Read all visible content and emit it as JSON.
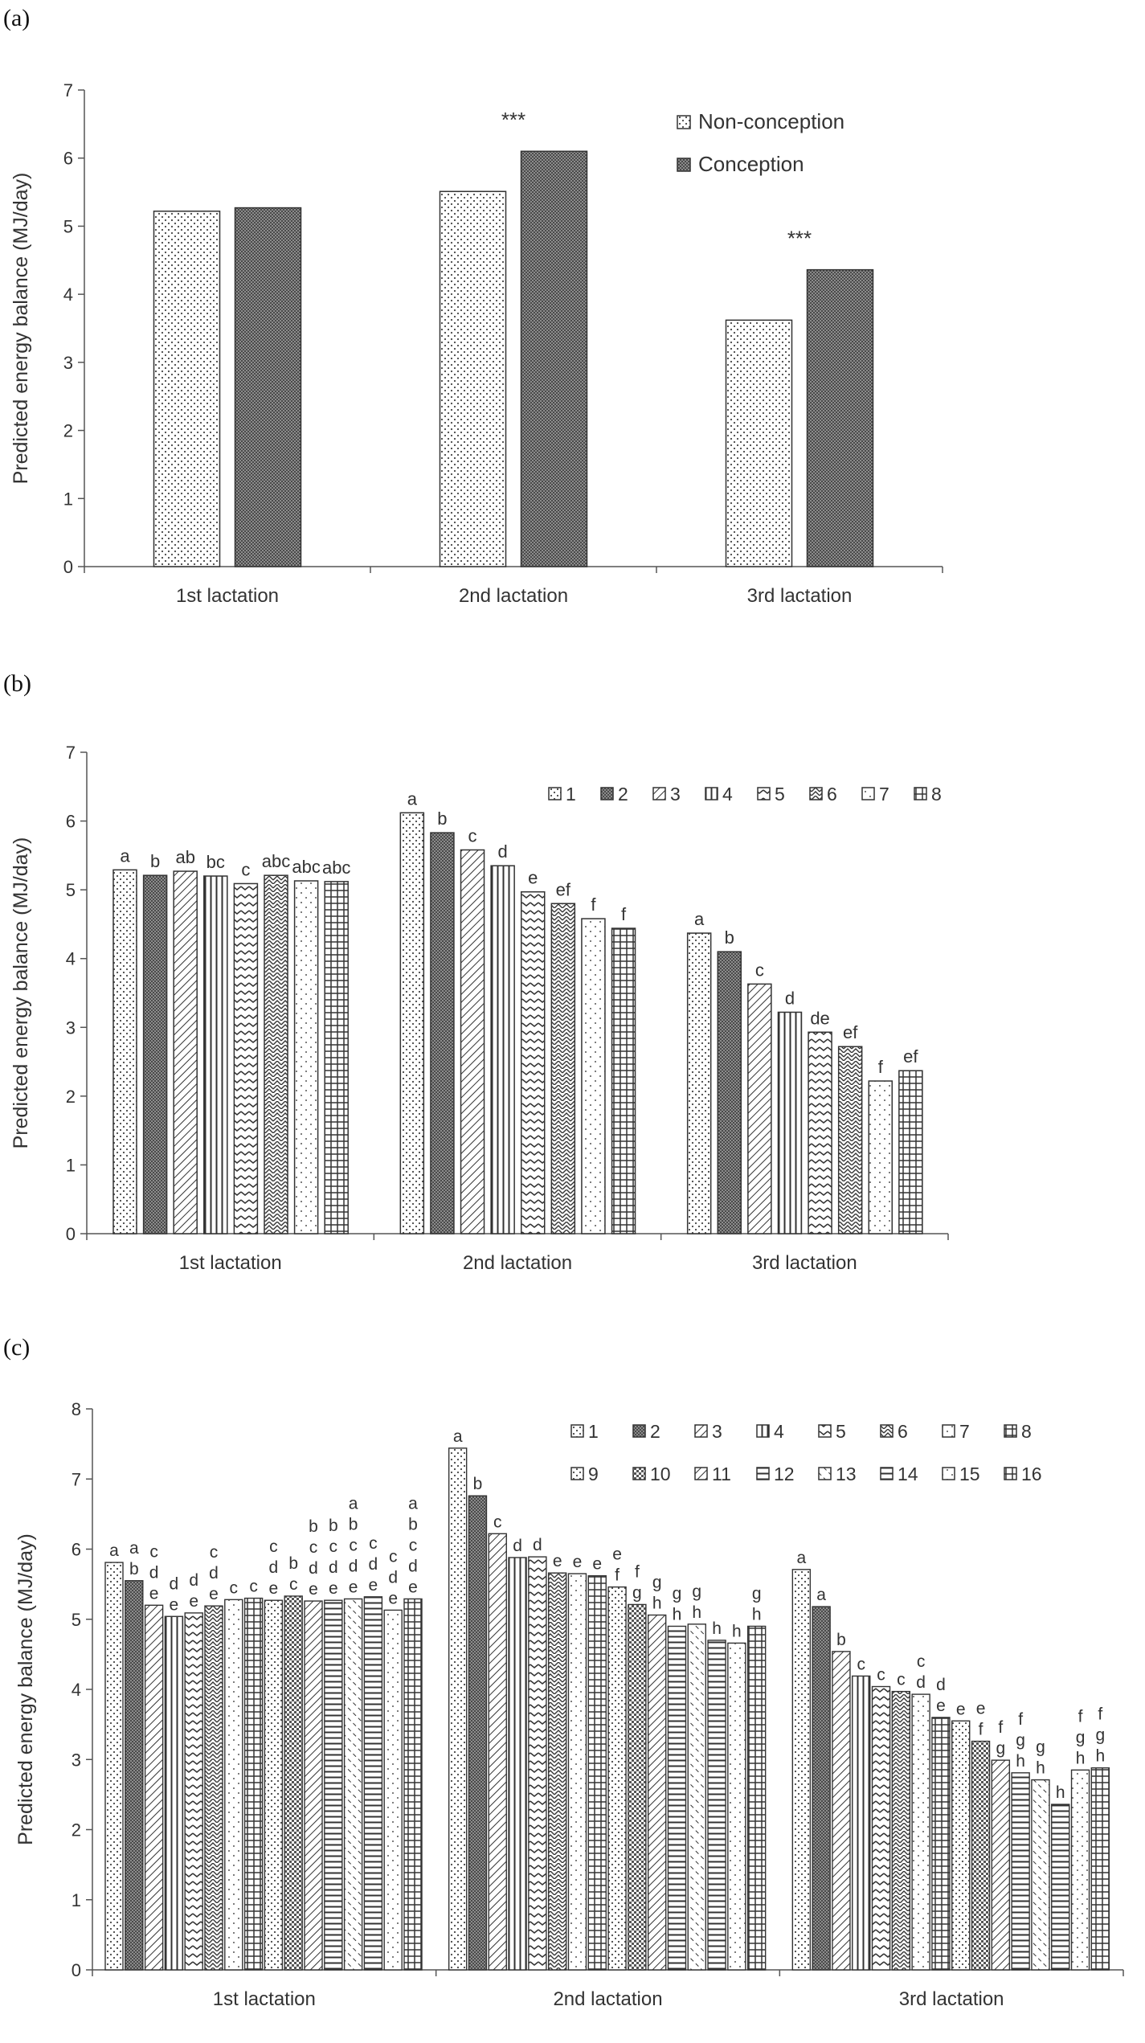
{
  "panels": [
    {
      "label": "(a)",
      "chart_data": {
        "type": "bar",
        "ylabel": "Predicted energy balance (MJ/day)",
        "ylim": [
          0,
          7
        ],
        "yticks": [
          0,
          1,
          2,
          3,
          4,
          5,
          6,
          7
        ],
        "categories": [
          "1st lactation",
          "2nd lactation",
          "3rd lactation"
        ],
        "legend_position": "top-right",
        "series": [
          {
            "name": "Non-conception",
            "pattern": "dots",
            "values": [
              5.22,
              5.51,
              3.62
            ]
          },
          {
            "name": "Conception",
            "pattern": "dense",
            "values": [
              5.27,
              6.1,
              4.36
            ]
          }
        ],
        "annotations": [
          {
            "text": "***",
            "category": 1
          },
          {
            "text": "***",
            "category": 2
          }
        ]
      }
    },
    {
      "label": "(b)",
      "chart_data": {
        "type": "bar",
        "ylabel": "Predicted energy balance (MJ/day)",
        "ylim": [
          0,
          7
        ],
        "yticks": [
          0,
          1,
          2,
          3,
          4,
          5,
          6,
          7
        ],
        "categories": [
          "1st lactation",
          "2nd lactation",
          "3rd lactation"
        ],
        "legend_position": "top-right",
        "series_names": [
          "1",
          "2",
          "3",
          "4",
          "5",
          "6",
          "7",
          "8"
        ],
        "patterns": [
          "dots",
          "dense",
          "diag",
          "vlines",
          "wave",
          "zigzag",
          "sparse",
          "grid"
        ],
        "values": [
          [
            5.29,
            5.21,
            5.27,
            5.2,
            5.09,
            5.21,
            5.13,
            5.12
          ],
          [
            6.12,
            5.83,
            5.58,
            5.35,
            4.97,
            4.8,
            4.58,
            4.44
          ],
          [
            4.37,
            4.1,
            3.63,
            3.22,
            2.93,
            2.72,
            2.22,
            2.37
          ]
        ],
        "letters": [
          [
            "a",
            "b",
            "ab",
            "bc",
            "c",
            "abc",
            "abc",
            "abc"
          ],
          [
            "a",
            "b",
            "c",
            "d",
            "e",
            "ef",
            "f",
            "f"
          ],
          [
            "a",
            "b",
            "c",
            "d",
            "de",
            "ef",
            "f",
            "ef"
          ]
        ]
      }
    },
    {
      "label": "(c)",
      "chart_data": {
        "type": "bar",
        "ylabel": "Predicted energy balance (MJ/day)",
        "ylim": [
          0,
          8
        ],
        "yticks": [
          0,
          1,
          2,
          3,
          4,
          5,
          6,
          7,
          8
        ],
        "categories": [
          "1st lactation",
          "2nd lactation",
          "3rd lactation"
        ],
        "legend_position": "top-right",
        "series_names": [
          "1",
          "2",
          "3",
          "4",
          "5",
          "6",
          "7",
          "8",
          "9",
          "10",
          "11",
          "12",
          "13",
          "14",
          "15",
          "16"
        ],
        "patterns": [
          "dots",
          "dense",
          "diag",
          "vlines",
          "wave",
          "zigzag",
          "sparse",
          "grid",
          "dots",
          "check",
          "diag",
          "hlines",
          "dashdiag",
          "hlines",
          "sparse",
          "grid"
        ],
        "values": [
          [
            5.81,
            5.55,
            5.2,
            5.04,
            5.09,
            5.19,
            5.28,
            5.3,
            5.27,
            5.33,
            5.26,
            5.27,
            5.29,
            5.32,
            5.13,
            5.29
          ],
          [
            7.44,
            6.76,
            6.22,
            5.88,
            5.89,
            5.66,
            5.65,
            5.62,
            5.46,
            5.21,
            5.06,
            4.9,
            4.93,
            4.7,
            4.66,
            4.9
          ],
          [
            5.71,
            5.18,
            4.54,
            4.19,
            4.04,
            3.97,
            3.93,
            3.6,
            3.55,
            3.26,
            2.99,
            2.81,
            2.71,
            2.36,
            2.85,
            2.88
          ]
        ],
        "letters": [
          [
            [
              "a"
            ],
            [
              "a",
              "b"
            ],
            [
              "c",
              "d",
              "e"
            ],
            [
              "d",
              "e"
            ],
            [
              "d",
              "e"
            ],
            [
              "c",
              "d",
              "e"
            ],
            [
              "c"
            ],
            [
              "c"
            ],
            [
              "c",
              "d",
              "e"
            ],
            [
              "b",
              "c"
            ],
            [
              "b",
              "c",
              "d",
              "e"
            ],
            [
              "b",
              "c",
              "d",
              "e"
            ],
            [
              "a",
              "b",
              "c",
              "d",
              "e"
            ],
            [
              "c",
              "d",
              "e"
            ],
            [
              "c",
              "d",
              "e"
            ],
            [
              "a",
              "b",
              "c",
              "d",
              "e"
            ]
          ],
          [
            [
              "a"
            ],
            [
              "b"
            ],
            [
              "c"
            ],
            [
              "d"
            ],
            [
              "d"
            ],
            [
              "e"
            ],
            [
              "e"
            ],
            [
              "e"
            ],
            [
              "e",
              "f"
            ],
            [
              "f",
              "g"
            ],
            [
              "g",
              "h"
            ],
            [
              "g",
              "h"
            ],
            [
              "g",
              "h"
            ],
            [
              "h"
            ],
            [
              "h"
            ],
            [
              "g",
              "h"
            ]
          ],
          [
            [
              "a"
            ],
            [
              "a"
            ],
            [
              "b"
            ],
            [
              "c"
            ],
            [
              "c"
            ],
            [
              "c"
            ],
            [
              "c",
              "d"
            ],
            [
              "d",
              "e"
            ],
            [
              "e"
            ],
            [
              "e",
              "f"
            ],
            [
              "f",
              "g"
            ],
            [
              "f",
              "g",
              "h"
            ],
            [
              "g",
              "h"
            ],
            [
              "h"
            ],
            [
              "f",
              "g",
              "h"
            ],
            [
              "f",
              "g",
              "h"
            ]
          ]
        ]
      }
    }
  ]
}
